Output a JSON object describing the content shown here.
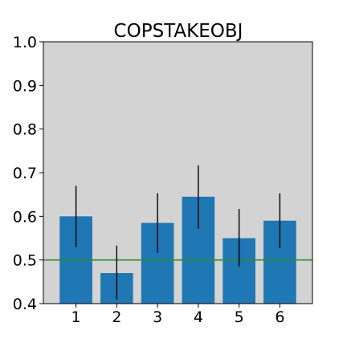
{
  "chart_data": {
    "type": "bar",
    "title": "COPSTAKEOBJ",
    "xlabel": "",
    "ylabel": "",
    "categories": [
      "1",
      "2",
      "3",
      "4",
      "5",
      "6"
    ],
    "values": [
      0.6,
      0.47,
      0.585,
      0.645,
      0.55,
      0.59
    ],
    "errors": [
      [
        0.53,
        0.67
      ],
      [
        0.41,
        0.533
      ],
      [
        0.517,
        0.653
      ],
      [
        0.572,
        0.717
      ],
      [
        0.485,
        0.617
      ],
      [
        0.527,
        0.653
      ]
    ],
    "ylim": [
      0.4,
      1.0
    ],
    "yticks": [
      "0.4",
      "0.5",
      "0.6",
      "0.7",
      "0.8",
      "0.9",
      "1.0"
    ],
    "reference_line": 0.5,
    "grid": false,
    "legend": "none",
    "colors": {
      "bar": "#1f77b4",
      "error_bar": "#000000",
      "reference_line": "#2e8b2e",
      "plot_background": "#d3d3d3",
      "frame": "#000000"
    }
  }
}
